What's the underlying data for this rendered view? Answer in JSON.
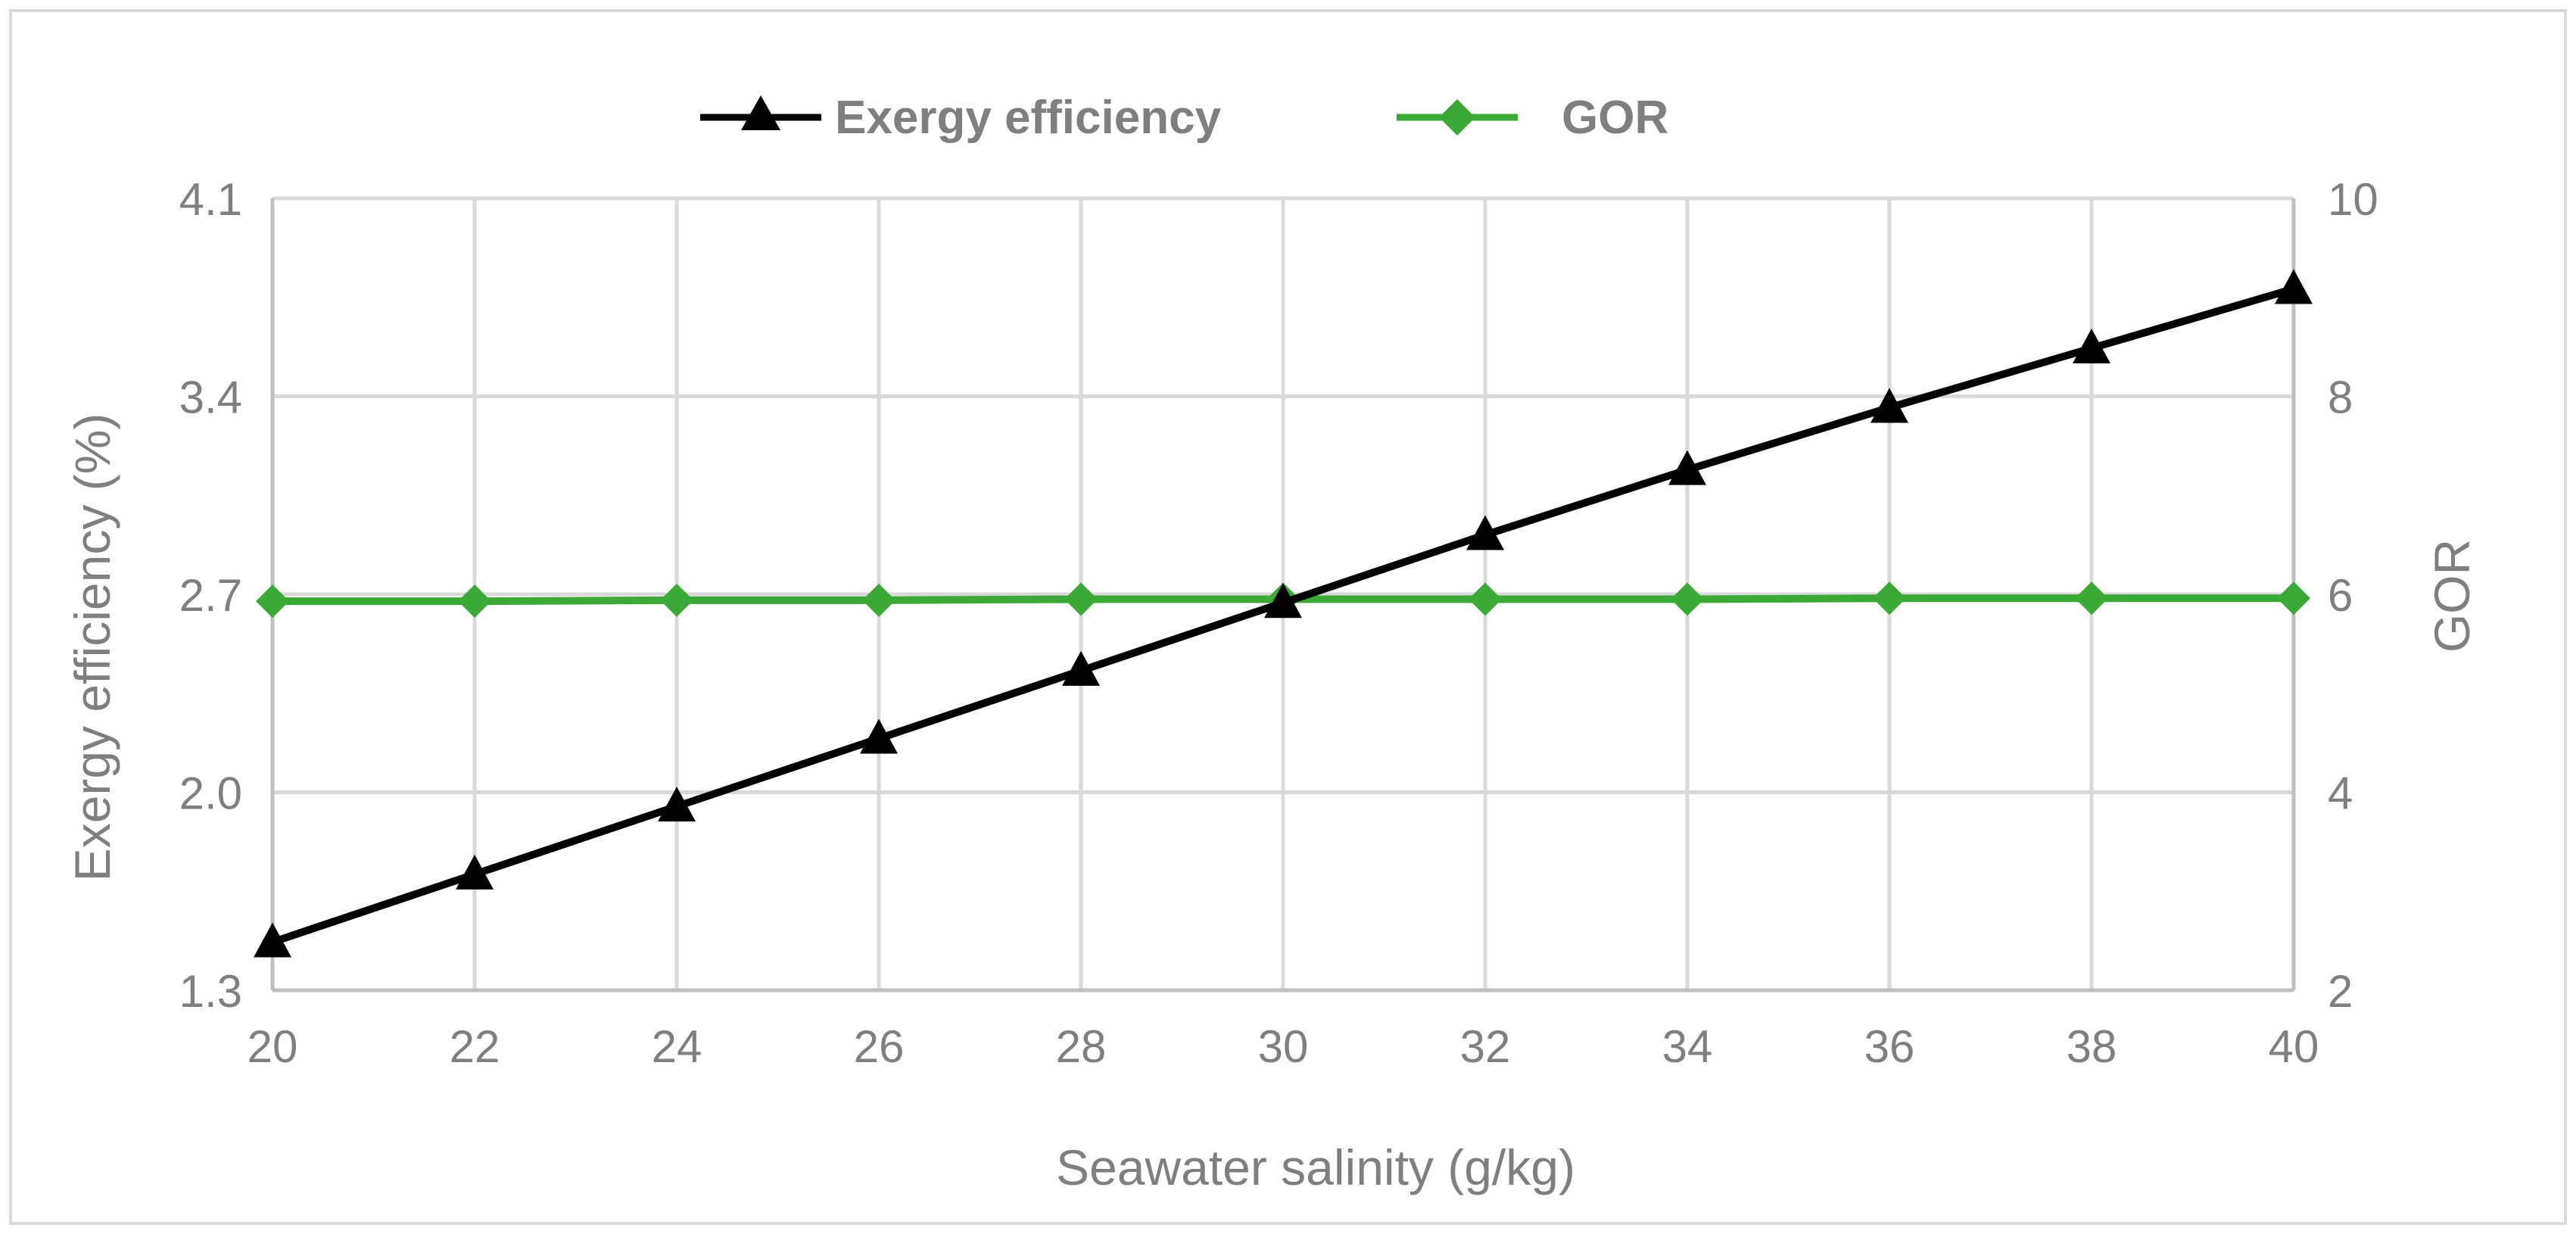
{
  "chart_data": {
    "type": "line",
    "title": "",
    "xlabel": "Seawater salinity (g/kg)",
    "ylabel": "Exergy efficiency (%)",
    "y2label": "GOR",
    "x": [
      20,
      22,
      24,
      26,
      28,
      30,
      32,
      34,
      36,
      38,
      40
    ],
    "xticks": [
      "20",
      "22",
      "24",
      "26",
      "28",
      "30",
      "32",
      "34",
      "36",
      "38",
      "40"
    ],
    "xlim": [
      20,
      40
    ],
    "ylim": [
      1.3,
      4.1
    ],
    "yticks": [
      "1.3",
      "2.0",
      "2.7",
      "3.4",
      "4.1"
    ],
    "y2lim": [
      2,
      10
    ],
    "y2ticks": [
      "2",
      "4",
      "6",
      "8",
      "10"
    ],
    "grid": true,
    "legend_position": "top-center",
    "series": [
      {
        "name": "Exergy efficiency",
        "axis": "left",
        "color": "#000000",
        "marker": "triangle",
        "values": [
          1.47,
          1.71,
          1.95,
          2.19,
          2.43,
          2.67,
          2.91,
          3.14,
          3.36,
          3.57,
          3.78
        ]
      },
      {
        "name": "GOR",
        "axis": "right",
        "color": "#3aa935",
        "marker": "diamond",
        "values": [
          5.93,
          5.93,
          5.94,
          5.94,
          5.95,
          5.95,
          5.95,
          5.95,
          5.96,
          5.96,
          5.96
        ]
      }
    ]
  }
}
